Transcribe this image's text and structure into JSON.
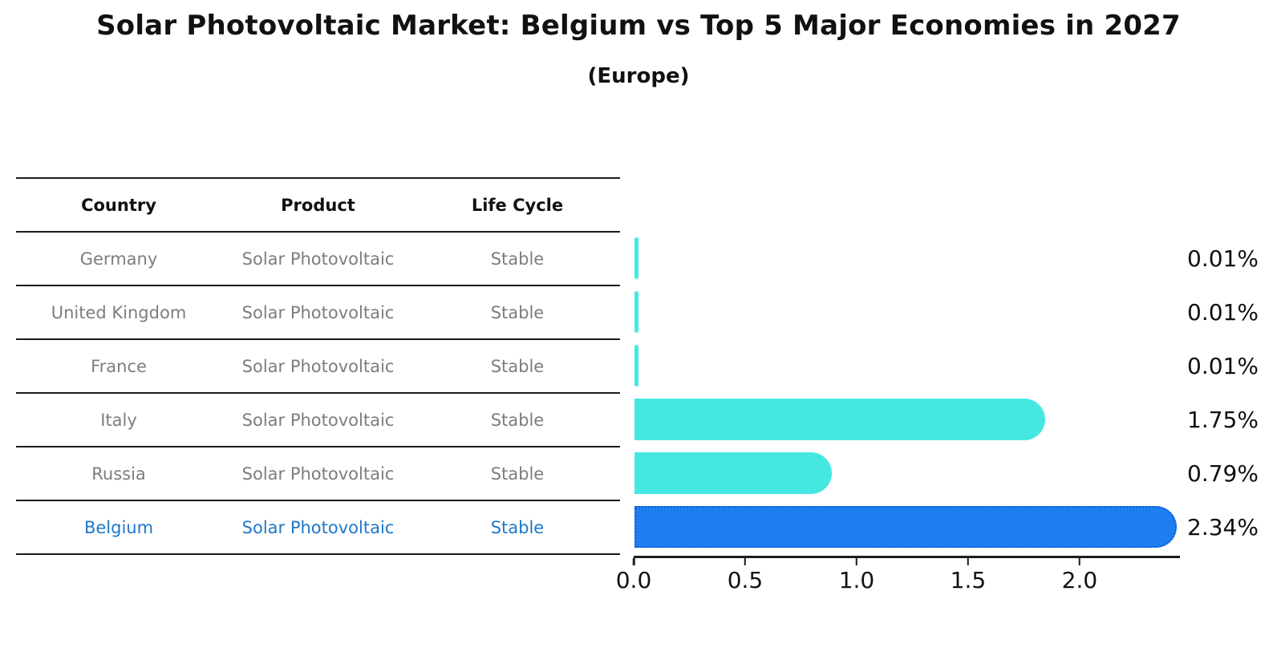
{
  "header": {
    "title": "Solar Photovoltaic Market: Belgium vs Top 5 Major Economies in 2027",
    "subtitle": "(Europe)"
  },
  "table": {
    "headers": [
      "Country",
      "Product",
      "Life Cycle"
    ],
    "rows": [
      {
        "country": "Germany",
        "product": "Solar Photovoltaic",
        "life_cycle": "Stable",
        "highlight": false
      },
      {
        "country": "United Kingdom",
        "product": "Solar Photovoltaic",
        "life_cycle": "Stable",
        "highlight": false
      },
      {
        "country": "France",
        "product": "Solar Photovoltaic",
        "life_cycle": "Stable",
        "highlight": false
      },
      {
        "country": "Italy",
        "product": "Solar Photovoltaic",
        "life_cycle": "Stable",
        "highlight": false
      },
      {
        "country": "Russia",
        "product": "Solar Photovoltaic",
        "life_cycle": "Stable",
        "highlight": false
      },
      {
        "country": "Belgium",
        "product": "Solar Photovoltaic",
        "life_cycle": "Stable",
        "highlight": true
      }
    ],
    "text_color": "#7d7d7d",
    "highlight_text_color": "#1f78c8"
  },
  "chart_data": {
    "type": "bar",
    "orientation": "horizontal",
    "title": "Solar Photovoltaic Market: Belgium vs Top 5 Major Economies in 2027 (Europe)",
    "categories": [
      "Germany",
      "United Kingdom",
      "France",
      "Italy",
      "Russia",
      "Belgium"
    ],
    "values": [
      0.01,
      0.01,
      0.01,
      1.75,
      0.79,
      2.34
    ],
    "value_labels": [
      "0.01%",
      "0.01%",
      "0.01%",
      "1.75%",
      "0.79%",
      "2.34%"
    ],
    "xticks": [
      "0.0",
      "0.5",
      "1.0",
      "1.5",
      "2.0"
    ],
    "xlim": [
      0,
      2.45
    ],
    "grid": false,
    "legend": "none",
    "highlight_index": 5,
    "colors": {
      "bar": "#45e8e1",
      "highlight_bar": "#1e7ef0",
      "highlight_border": "#0d5ed6",
      "axis": "#1c1c1c",
      "label": "#111111"
    }
  }
}
